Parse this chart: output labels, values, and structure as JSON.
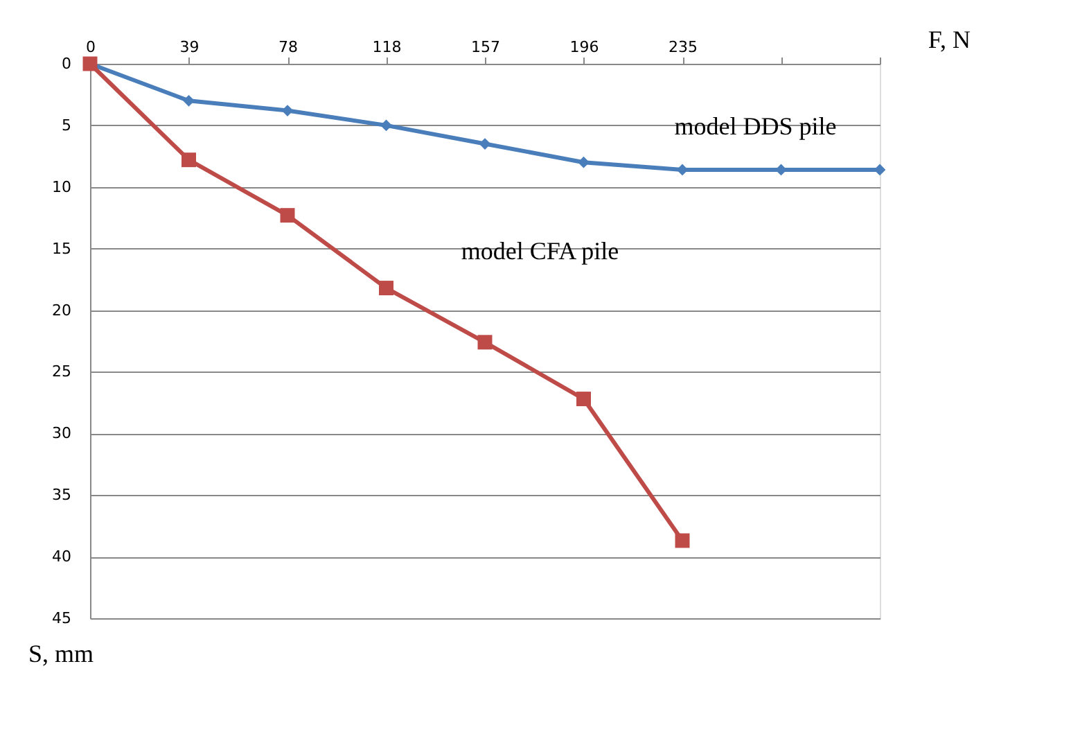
{
  "chart_data": {
    "type": "line",
    "xlabel": "F, N",
    "ylabel": "S, mm",
    "categories": [
      "0",
      "39",
      "78",
      "118",
      "157",
      "196",
      "235",
      null,
      null
    ],
    "series": [
      {
        "name": "model DDS pile",
        "color": "#4a7ebb",
        "marker": "diamond",
        "values": [
          0,
          3,
          3.8,
          5,
          6.5,
          8,
          8.6,
          8.6,
          8.6
        ]
      },
      {
        "name": "model CFA pile",
        "color": "#be4b48",
        "marker": "square",
        "values": [
          0,
          7.8,
          12.3,
          18.2,
          22.6,
          27.2,
          38.7,
          null,
          null
        ]
      }
    ],
    "ylim": [
      45,
      0
    ],
    "yticks": [
      0,
      5,
      10,
      15,
      20,
      25,
      30,
      35,
      40,
      45
    ],
    "grid": "y",
    "legend": false,
    "line_style": "solid"
  }
}
